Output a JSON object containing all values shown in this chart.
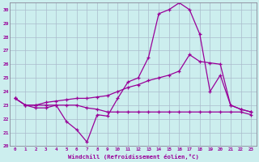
{
  "xlabel": "Windchill (Refroidissement éolien,°C)",
  "background_color": "#cceeee",
  "grid_color": "#aabbcc",
  "line_color": "#990099",
  "xlim": [
    -0.5,
    23.5
  ],
  "ylim": [
    20,
    30.5
  ],
  "yticks": [
    20,
    21,
    22,
    23,
    24,
    25,
    26,
    27,
    28,
    29,
    30
  ],
  "xticks": [
    0,
    1,
    2,
    3,
    4,
    5,
    6,
    7,
    8,
    9,
    10,
    11,
    12,
    13,
    14,
    15,
    16,
    17,
    18,
    19,
    20,
    21,
    22,
    23
  ],
  "series": [
    [
      23.5,
      23.0,
      22.8,
      22.8,
      23.0,
      21.8,
      21.2,
      20.3,
      22.3,
      22.2,
      23.5,
      24.7,
      25.0,
      26.5,
      29.7,
      30.0,
      30.5,
      30.0,
      28.2,
      24.0,
      25.2,
      23.0,
      22.7,
      22.5
    ],
    [
      23.5,
      23.0,
      23.0,
      23.0,
      23.0,
      23.0,
      23.0,
      22.8,
      22.7,
      22.5,
      22.5,
      22.5,
      22.5,
      22.5,
      22.5,
      22.5,
      22.5,
      22.5,
      22.5,
      22.5,
      22.5,
      22.5,
      22.5,
      22.3
    ],
    [
      23.5,
      23.0,
      23.0,
      23.2,
      23.3,
      23.4,
      23.5,
      23.5,
      23.6,
      23.7,
      24.0,
      24.3,
      24.5,
      24.8,
      25.0,
      25.2,
      25.5,
      26.7,
      26.2,
      26.1,
      26.0,
      23.0,
      22.7,
      22.5
    ]
  ]
}
